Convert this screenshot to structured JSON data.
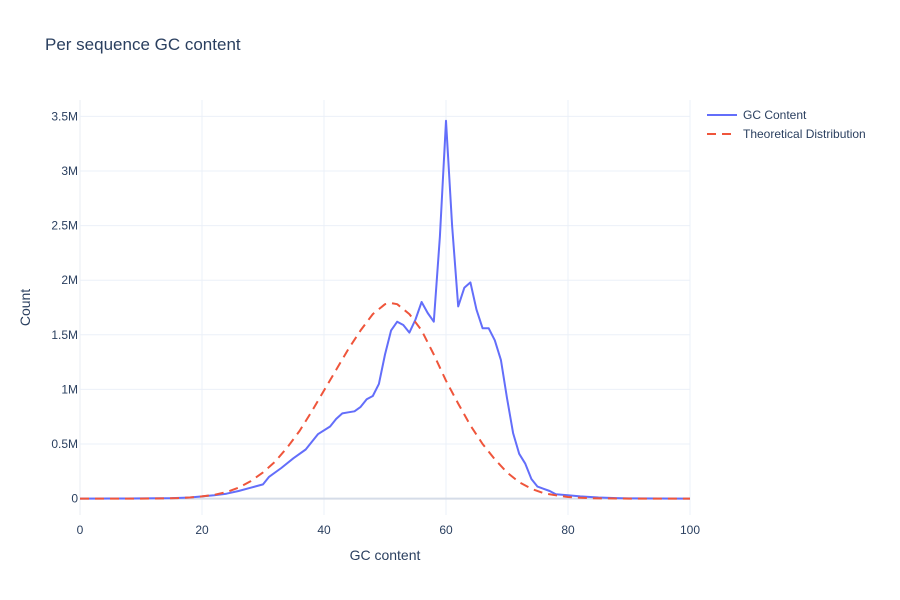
{
  "chart_data": {
    "type": "line",
    "title": "Per sequence GC content",
    "xlabel": "GC content",
    "ylabel": "Count",
    "xlim": [
      0,
      100
    ],
    "ylim": [
      -150000,
      3650000
    ],
    "x_ticks": [
      0,
      20,
      40,
      60,
      80,
      100
    ],
    "x_tick_labels": [
      "0",
      "20",
      "40",
      "60",
      "80",
      "100"
    ],
    "y_ticks": [
      0,
      500000,
      1000000,
      1500000,
      2000000,
      2500000,
      3000000,
      3500000
    ],
    "y_tick_labels": [
      "0",
      "0.5M",
      "1M",
      "1.5M",
      "2M",
      "2.5M",
      "3M",
      "3.5M"
    ],
    "grid": true,
    "legend_position": "top-right",
    "series": [
      {
        "name": "GC Content",
        "color": "#636efa",
        "dash": "solid",
        "x": [
          0,
          5,
          10,
          15,
          17,
          18,
          20,
          22,
          24,
          26,
          28,
          30,
          31,
          33,
          35,
          37,
          39,
          41,
          42,
          43,
          44,
          45,
          46,
          47,
          48,
          49,
          50,
          51,
          52,
          53,
          54,
          55,
          56,
          57,
          58,
          59,
          60,
          61,
          62,
          63,
          64,
          65,
          66,
          67,
          68,
          69,
          70,
          71,
          72,
          73,
          74,
          75,
          76,
          77,
          78,
          80,
          82,
          85,
          88,
          90,
          95,
          100
        ],
        "y": [
          0,
          1000,
          2000,
          5000,
          8000,
          10000,
          20000,
          30000,
          45000,
          70000,
          100000,
          130000,
          200000,
          280000,
          370000,
          450000,
          590000,
          660000,
          730000,
          780000,
          790000,
          800000,
          840000,
          910000,
          940000,
          1050000,
          1320000,
          1540000,
          1620000,
          1590000,
          1520000,
          1640000,
          1800000,
          1700000,
          1620000,
          2400000,
          3460000,
          2500000,
          1760000,
          1930000,
          1980000,
          1730000,
          1560000,
          1560000,
          1450000,
          1270000,
          920000,
          600000,
          410000,
          320000,
          180000,
          110000,
          90000,
          70000,
          40000,
          30000,
          20000,
          10000,
          5000,
          2000,
          1000,
          0
        ]
      },
      {
        "name": "Theoretical Distribution",
        "color": "#ef553b",
        "dash": "dashed",
        "x": [
          0,
          2,
          4,
          6,
          8,
          10,
          12,
          14,
          16,
          18,
          20,
          22,
          24,
          26,
          28,
          30,
          32,
          34,
          36,
          38,
          40,
          42,
          44,
          46,
          48,
          50,
          51,
          52,
          54,
          56,
          58,
          60,
          62,
          64,
          66,
          68,
          70,
          72,
          74,
          76,
          78,
          80,
          82,
          84,
          86,
          88,
          90,
          92,
          94,
          96,
          98,
          100
        ],
        "y": [
          0,
          0,
          0,
          0,
          0,
          0,
          1000,
          2000,
          5000,
          10000,
          20000,
          35000,
          60000,
          100000,
          160000,
          240000,
          340000,
          470000,
          620000,
          800000,
          990000,
          1180000,
          1370000,
          1540000,
          1690000,
          1780000,
          1790000,
          1780000,
          1690000,
          1540000,
          1320000,
          1080000,
          870000,
          670000,
          500000,
          360000,
          240000,
          150000,
          90000,
          50000,
          30000,
          15000,
          8000,
          4000,
          2000,
          1000,
          0,
          0,
          0,
          0,
          0,
          0
        ]
      }
    ]
  }
}
